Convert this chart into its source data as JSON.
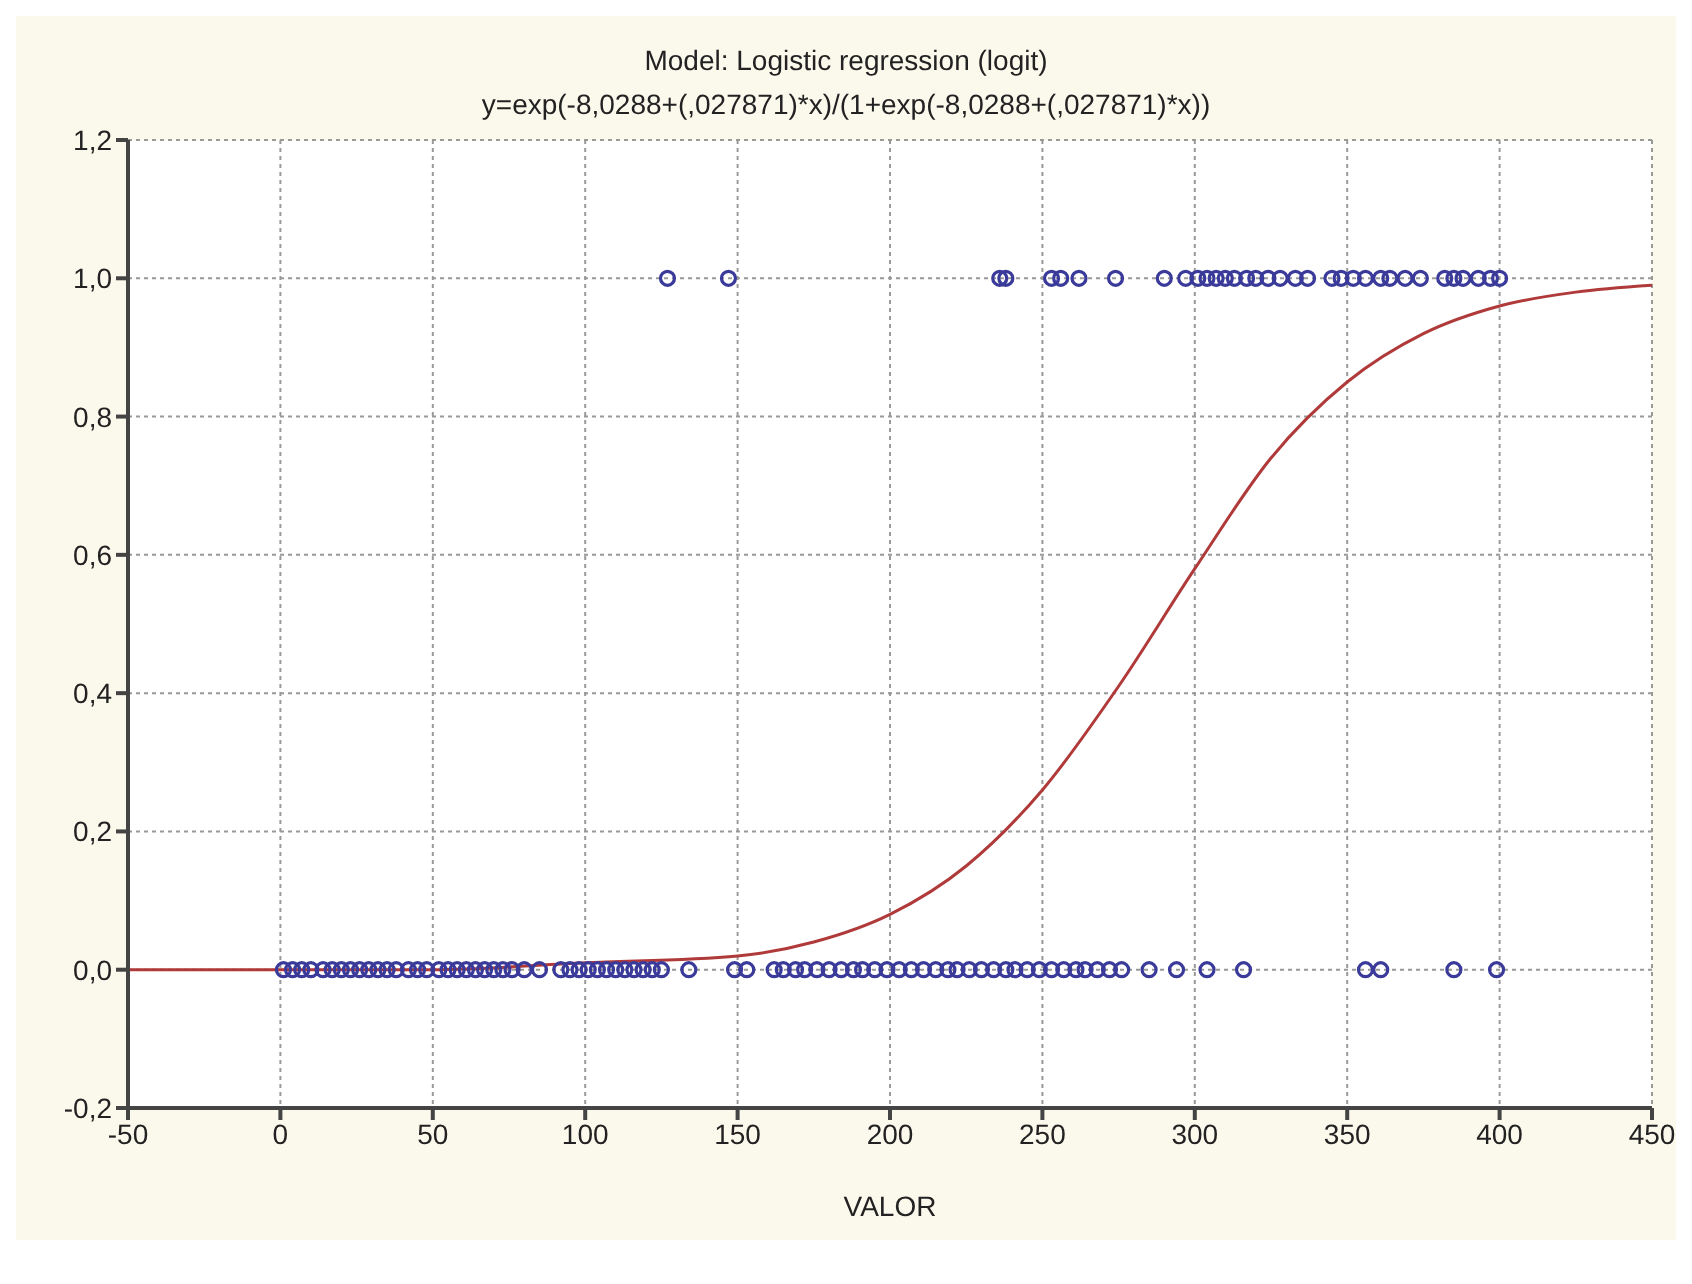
{
  "chart_data": {
    "type": "scatter",
    "title": "Model: Logistic regression (logit)",
    "subtitle": "y=exp(-8,0288+(,027871)*x)/(1+exp(-8,0288+(,027871)*x))",
    "xlabel": "VALOR",
    "xlim": [
      -50,
      450
    ],
    "xticks": [
      -50,
      0,
      50,
      100,
      150,
      200,
      250,
      300,
      350,
      400,
      450
    ],
    "ylim": [
      -0.2,
      1.2
    ],
    "yticks": [
      {
        "value": -0.2,
        "label": "-0,2"
      },
      {
        "value": 0,
        "label": "0,0"
      },
      {
        "value": 0.2,
        "label": "0,2"
      },
      {
        "value": 0.4,
        "label": "0,4"
      },
      {
        "value": 0.6,
        "label": "0,6"
      },
      {
        "value": 0.8,
        "label": "0,8"
      },
      {
        "value": 1,
        "label": "1,0"
      },
      {
        "value": 1.2,
        "label": "1,2"
      }
    ],
    "grid": true,
    "legend": false,
    "marker": "circle",
    "series": [
      {
        "color": "#3a3a9a",
        "x": [
          127,
          147,
          236,
          238,
          253,
          256,
          262,
          274,
          290,
          297,
          301,
          304,
          307,
          310,
          313,
          317,
          320,
          324,
          328,
          333,
          337,
          345,
          348,
          352,
          356,
          361,
          364,
          369,
          374,
          382,
          385,
          388,
          393,
          397,
          400
        ],
        "values": [
          1,
          1,
          1,
          1,
          1,
          1,
          1,
          1,
          1,
          1,
          1,
          1,
          1,
          1,
          1,
          1,
          1,
          1,
          1,
          1,
          1,
          1,
          1,
          1,
          1,
          1,
          1,
          1,
          1,
          1,
          1,
          1,
          1,
          1,
          1
        ]
      },
      {
        "color": "#3a3a9a",
        "x": [
          1,
          4,
          7,
          10,
          14,
          17,
          20,
          23,
          26,
          29,
          32,
          35,
          38,
          42,
          45,
          48,
          52,
          55,
          58,
          61,
          64,
          67,
          70,
          73,
          76,
          80,
          85,
          92,
          95,
          98,
          101,
          104,
          107,
          110,
          113,
          116,
          119,
          122,
          125,
          134,
          149,
          153,
          162,
          165,
          169,
          172,
          176,
          180,
          184,
          188,
          191,
          195,
          199,
          203,
          207,
          211,
          215,
          219,
          222,
          226,
          230,
          234,
          238,
          241,
          245,
          249,
          253,
          257,
          261,
          264,
          268,
          272,
          276,
          285,
          294,
          304,
          316,
          356,
          361,
          385,
          399
        ],
        "values": [
          0,
          0,
          0,
          0,
          0,
          0,
          0,
          0,
          0,
          0,
          0,
          0,
          0,
          0,
          0,
          0,
          0,
          0,
          0,
          0,
          0,
          0,
          0,
          0,
          0,
          0,
          0,
          0,
          0,
          0,
          0,
          0,
          0,
          0,
          0,
          0,
          0,
          0,
          0,
          0,
          0,
          0,
          0,
          0,
          0,
          0,
          0,
          0,
          0,
          0,
          0,
          0,
          0,
          0,
          0,
          0,
          0,
          0,
          0,
          0,
          0,
          0,
          0,
          0,
          0,
          0,
          0,
          0,
          0,
          0,
          0,
          0,
          0,
          0,
          0,
          0,
          0,
          0,
          0,
          0,
          0
        ]
      },
      {
        "type": "line",
        "color": "#b03a3a",
        "marker": "none",
        "line_style": "solid",
        "x": [
          -50,
          0,
          50,
          100,
          150,
          175,
          200,
          225,
          250,
          275,
          300,
          325,
          350,
          375,
          400,
          425,
          450
        ],
        "values": [
          0,
          0,
          0,
          0.01,
          0.02,
          0.04,
          0.08,
          0.15,
          0.26,
          0.41,
          0.58,
          0.74,
          0.85,
          0.92,
          0.96,
          0.98,
          0.99
        ]
      }
    ]
  }
}
